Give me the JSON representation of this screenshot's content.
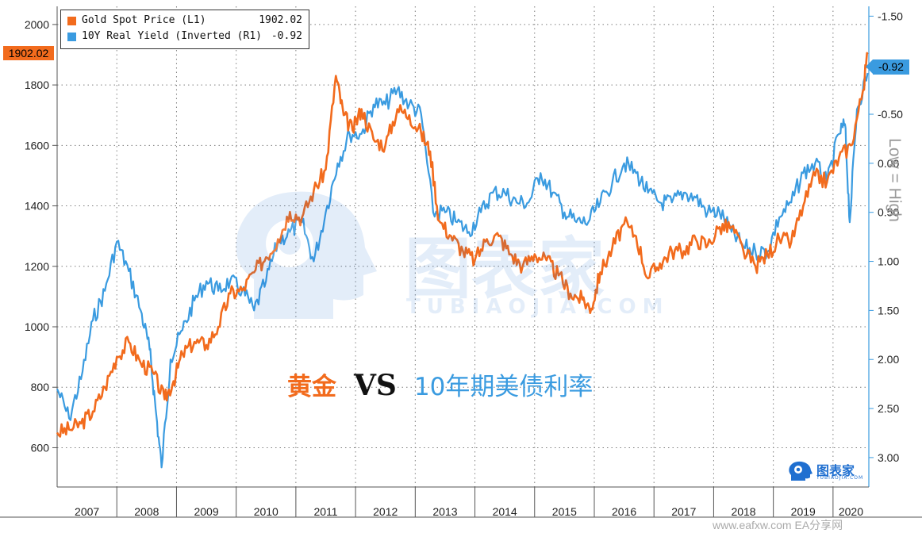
{
  "chart_data": {
    "type": "line",
    "x_axis": {
      "tick_labels": [
        "2007",
        "2008",
        "2009",
        "2010",
        "2011",
        "2012",
        "2013",
        "2014",
        "2015",
        "2016",
        "2017",
        "2018",
        "2019",
        "2020"
      ],
      "range": [
        2007.0,
        2020.6
      ]
    },
    "left_axis": {
      "ticks": [
        600,
        800,
        1000,
        1200,
        1400,
        1600,
        1800,
        2000
      ],
      "tick_labels": [
        "600",
        "800",
        "1000",
        "1200",
        "1400",
        "1600",
        "1800",
        "2000"
      ],
      "ylim": [
        470,
        2060
      ]
    },
    "right_axis": {
      "ticks": [
        -1.5,
        -1.0,
        -0.5,
        0.0,
        0.5,
        1.0,
        1.5,
        2.0,
        2.5,
        3.0
      ],
      "tick_labels": [
        "-1.50",
        "-1.00",
        "-0.50",
        "0.00",
        "0.50",
        "1.00",
        "1.50",
        "2.00",
        "2.50",
        "3.00"
      ],
      "ylim": [
        3.3,
        -1.6
      ],
      "inverted": true,
      "side_label": "Low = High"
    },
    "grid": true,
    "legend_position": "top-left",
    "series": [
      {
        "name": "Gold Spot Price (L1)",
        "legend_value": "1902.02",
        "last_value_badge": "1902.02",
        "axis": "left",
        "color": "#f26b1d",
        "x": [
          2007.0,
          2007.2,
          2007.4,
          2007.6,
          2007.8,
          2008.0,
          2008.2,
          2008.4,
          2008.6,
          2008.8,
          2008.95,
          2009.1,
          2009.3,
          2009.5,
          2009.7,
          2009.9,
          2010.1,
          2010.3,
          2010.5,
          2010.7,
          2010.9,
          2011.1,
          2011.3,
          2011.5,
          2011.67,
          2011.8,
          2011.95,
          2012.1,
          2012.3,
          2012.5,
          2012.7,
          2012.9,
          2013.1,
          2013.25,
          2013.4,
          2013.6,
          2013.8,
          2014.0,
          2014.2,
          2014.4,
          2014.6,
          2014.8,
          2015.0,
          2015.2,
          2015.4,
          2015.6,
          2015.8,
          2015.95,
          2016.1,
          2016.3,
          2016.5,
          2016.7,
          2016.9,
          2017.1,
          2017.3,
          2017.5,
          2017.7,
          2017.9,
          2018.1,
          2018.3,
          2018.5,
          2018.7,
          2018.9,
          2019.1,
          2019.3,
          2019.5,
          2019.7,
          2019.9,
          2020.1,
          2020.3,
          2020.5,
          2020.58
        ],
        "values": [
          650,
          660,
          680,
          720,
          800,
          900,
          950,
          880,
          850,
          760,
          820,
          910,
          950,
          940,
          1000,
          1110,
          1120,
          1180,
          1230,
          1290,
          1380,
          1360,
          1450,
          1520,
          1830,
          1700,
          1650,
          1720,
          1620,
          1600,
          1720,
          1700,
          1640,
          1580,
          1350,
          1300,
          1250,
          1220,
          1290,
          1300,
          1240,
          1200,
          1240,
          1220,
          1170,
          1110,
          1090,
          1060,
          1180,
          1260,
          1340,
          1300,
          1160,
          1210,
          1250,
          1250,
          1290,
          1270,
          1330,
          1330,
          1250,
          1200,
          1240,
          1290,
          1280,
          1400,
          1500,
          1480,
          1560,
          1600,
          1780,
          1902
        ]
      },
      {
        "name": "10Y Real Yield (Inverted (R1)",
        "legend_value": "-0.92",
        "last_value_badge": "-0.92",
        "axis": "right",
        "color": "#3a9be0",
        "x": [
          2007.0,
          2007.2,
          2007.4,
          2007.6,
          2007.8,
          2008.0,
          2008.2,
          2008.4,
          2008.55,
          2008.65,
          2008.75,
          2008.9,
          2009.1,
          2009.3,
          2009.5,
          2009.7,
          2009.9,
          2010.1,
          2010.3,
          2010.5,
          2010.7,
          2010.9,
          2011.1,
          2011.3,
          2011.5,
          2011.7,
          2011.9,
          2012.1,
          2012.3,
          2012.5,
          2012.7,
          2012.9,
          2013.1,
          2013.3,
          2013.5,
          2013.7,
          2013.9,
          2014.1,
          2014.3,
          2014.5,
          2014.7,
          2014.9,
          2015.1,
          2015.3,
          2015.5,
          2015.7,
          2015.9,
          2016.1,
          2016.3,
          2016.5,
          2016.7,
          2016.9,
          2017.1,
          2017.3,
          2017.5,
          2017.7,
          2017.9,
          2018.1,
          2018.3,
          2018.5,
          2018.7,
          2018.9,
          2019.1,
          2019.3,
          2019.5,
          2019.7,
          2019.9,
          2020.1,
          2020.2,
          2020.28,
          2020.4,
          2020.58
        ],
        "values": [
          2.3,
          2.6,
          2.2,
          1.6,
          1.3,
          0.8,
          1.1,
          1.5,
          1.9,
          2.5,
          3.1,
          2.0,
          1.7,
          1.4,
          1.2,
          1.3,
          1.2,
          1.3,
          1.5,
          1.2,
          0.8,
          0.7,
          0.6,
          1.0,
          0.5,
          0.0,
          -0.3,
          -0.3,
          -0.6,
          -0.6,
          -0.75,
          -0.6,
          -0.5,
          0.5,
          0.5,
          0.6,
          0.7,
          0.5,
          0.3,
          0.3,
          0.4,
          0.4,
          0.1,
          0.3,
          0.5,
          0.6,
          0.6,
          0.4,
          0.2,
          0.0,
          0.1,
          0.3,
          0.4,
          0.4,
          0.3,
          0.35,
          0.5,
          0.5,
          0.7,
          0.85,
          0.9,
          0.9,
          0.55,
          0.4,
          0.1,
          0.0,
          0.2,
          -0.3,
          -0.4,
          0.6,
          -0.55,
          -0.92
        ]
      }
    ]
  },
  "caption": {
    "gold": "黄金",
    "vs": "VS",
    "yield": "10年期美债利率"
  },
  "watermark": {
    "brand": "图表家",
    "sub": "TUBIAOJIA.COM"
  },
  "logo": {
    "brand": "图表家",
    "sub": "TUBIAOJIA.COM"
  },
  "credit": "www.eafxw.com  EA分享网"
}
